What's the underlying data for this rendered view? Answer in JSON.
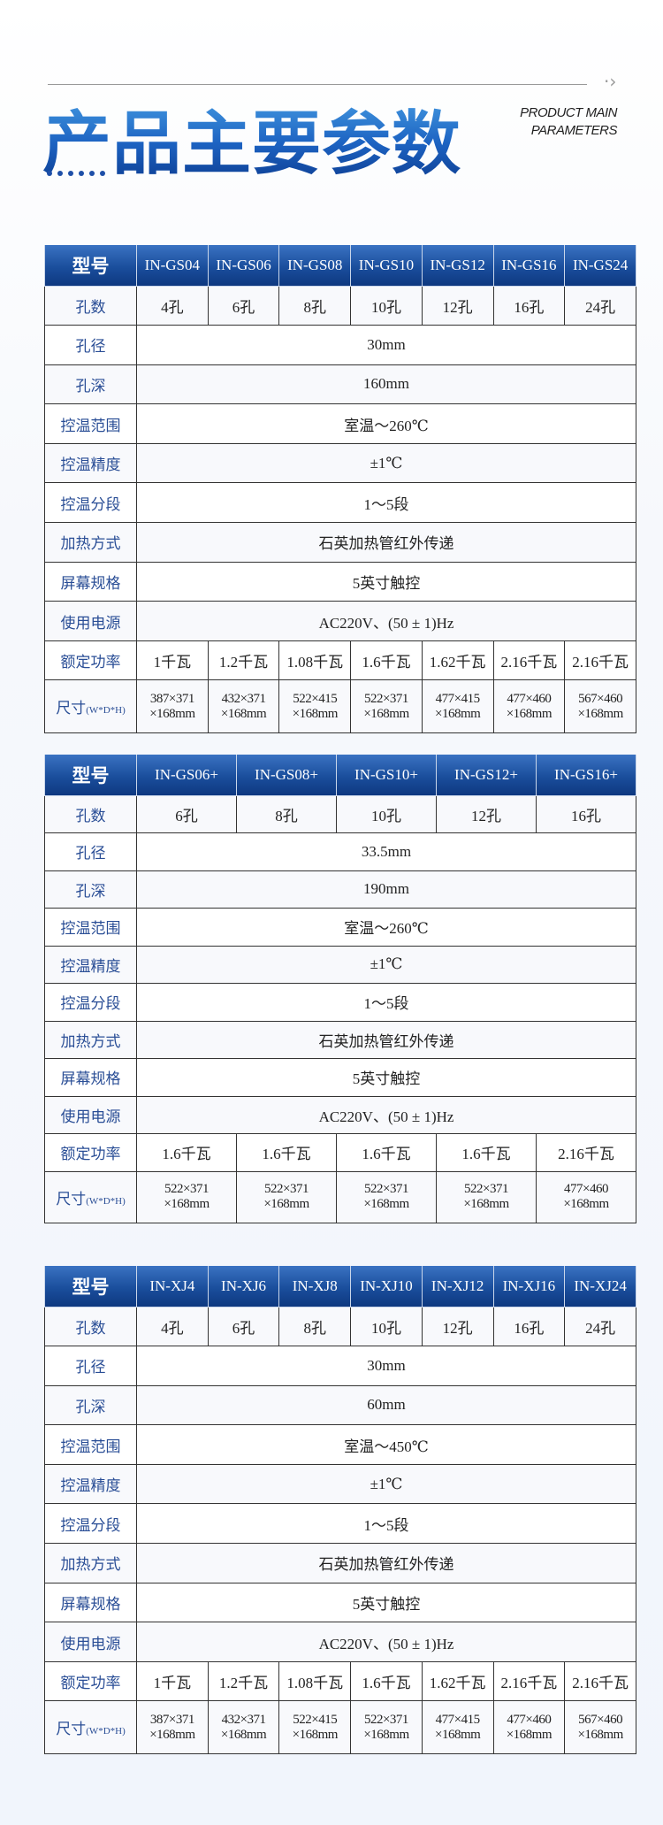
{
  "header": {
    "title": "产品主要参数",
    "subtitle_line1": "PRODUCT MAIN",
    "subtitle_line2": "PARAMETERS",
    "arrow_icon": "chevron-right-icon",
    "accent_color": "#1d63c2"
  },
  "tables": [
    {
      "model_label": "型号",
      "models": [
        "IN-GS04",
        "IN-GS06",
        "IN-GS08",
        "IN-GS10",
        "IN-GS12",
        "IN-GS16",
        "IN-GS24"
      ],
      "rows": [
        {
          "label": "孔数",
          "values": [
            "4孔",
            "6孔",
            "8孔",
            "10孔",
            "12孔",
            "16孔",
            "24孔"
          ]
        },
        {
          "label": "孔径",
          "span": "30mm"
        },
        {
          "label": "孔深",
          "span": "160mm"
        },
        {
          "label": "控温范围",
          "span": "室温～260℃"
        },
        {
          "label": "控温精度",
          "span": "±1℃"
        },
        {
          "label": "控温分段",
          "span": "1～5段"
        },
        {
          "label": "加热方式",
          "span": "石英加热管红外传递"
        },
        {
          "label": "屏幕规格",
          "span": "5英寸触控"
        },
        {
          "label": "使用电源",
          "span": "AC220V、(50 ± 1)Hz"
        },
        {
          "label": "额定功率",
          "values": [
            "1千瓦",
            "1.2千瓦",
            "1.08千瓦",
            "1.6千瓦",
            "1.62千瓦",
            "2.16千瓦",
            "2.16千瓦"
          ]
        },
        {
          "label": "尺寸",
          "label_small": "(W*D*H)",
          "size": true,
          "values": [
            "387×371 ×168mm",
            "432×371 ×168mm",
            "522×415 ×168mm",
            "522×371 ×168mm",
            "477×415 ×168mm",
            "477×460 ×168mm",
            "567×460 ×168mm"
          ]
        }
      ]
    },
    {
      "model_label": "型号",
      "models": [
        "IN-GS06+",
        "IN-GS08+",
        "IN-GS10+",
        "IN-GS12+",
        "IN-GS16+"
      ],
      "rows": [
        {
          "label": "孔数",
          "values": [
            "6孔",
            "8孔",
            "10孔",
            "12孔",
            "16孔"
          ]
        },
        {
          "label": "孔径",
          "span": "33.5mm"
        },
        {
          "label": "孔深",
          "span": "190mm"
        },
        {
          "label": "控温范围",
          "span": "室温～260℃"
        },
        {
          "label": "控温精度",
          "span": "±1℃"
        },
        {
          "label": "控温分段",
          "span": "1～5段"
        },
        {
          "label": "加热方式",
          "span": "石英加热管红外传递"
        },
        {
          "label": "屏幕规格",
          "span": "5英寸触控"
        },
        {
          "label": "使用电源",
          "span": "AC220V、(50 ± 1)Hz"
        },
        {
          "label": "额定功率",
          "values": [
            "1.6千瓦",
            "1.6千瓦",
            "1.6千瓦",
            "1.6千瓦",
            "2.16千瓦"
          ]
        },
        {
          "label": "尺寸",
          "label_small": "(W*D*H)",
          "size": true,
          "values": [
            "522×371 ×168mm",
            "522×371 ×168mm",
            "522×371 ×168mm",
            "522×371 ×168mm",
            "477×460 ×168mm"
          ]
        }
      ]
    },
    {
      "model_label": "型号",
      "models": [
        "IN-XJ4",
        "IN-XJ6",
        "IN-XJ8",
        "IN-XJ10",
        "IN-XJ12",
        "IN-XJ16",
        "IN-XJ24"
      ],
      "rows": [
        {
          "label": "孔数",
          "values": [
            "4孔",
            "6孔",
            "8孔",
            "10孔",
            "12孔",
            "16孔",
            "24孔"
          ]
        },
        {
          "label": "孔径",
          "span": "30mm"
        },
        {
          "label": "孔深",
          "span": "60mm"
        },
        {
          "label": "控温范围",
          "span": "室温～450℃"
        },
        {
          "label": "控温精度",
          "span": "±1℃"
        },
        {
          "label": "控温分段",
          "span": "1～5段"
        },
        {
          "label": "加热方式",
          "span": "石英加热管红外传递"
        },
        {
          "label": "屏幕规格",
          "span": "5英寸触控"
        },
        {
          "label": "使用电源",
          "span": "AC220V、(50 ± 1)Hz"
        },
        {
          "label": "额定功率",
          "values": [
            "1千瓦",
            "1.2千瓦",
            "1.08千瓦",
            "1.6千瓦",
            "1.62千瓦",
            "2.16千瓦",
            "2.16千瓦"
          ]
        },
        {
          "label": "尺寸",
          "label_small": "(W*D*H)",
          "size": true,
          "values": [
            "387×371 ×168mm",
            "432×371 ×168mm",
            "522×415 ×168mm",
            "522×371 ×168mm",
            "477×415 ×168mm",
            "477×460 ×168mm",
            "567×460 ×168mm"
          ]
        }
      ]
    }
  ]
}
